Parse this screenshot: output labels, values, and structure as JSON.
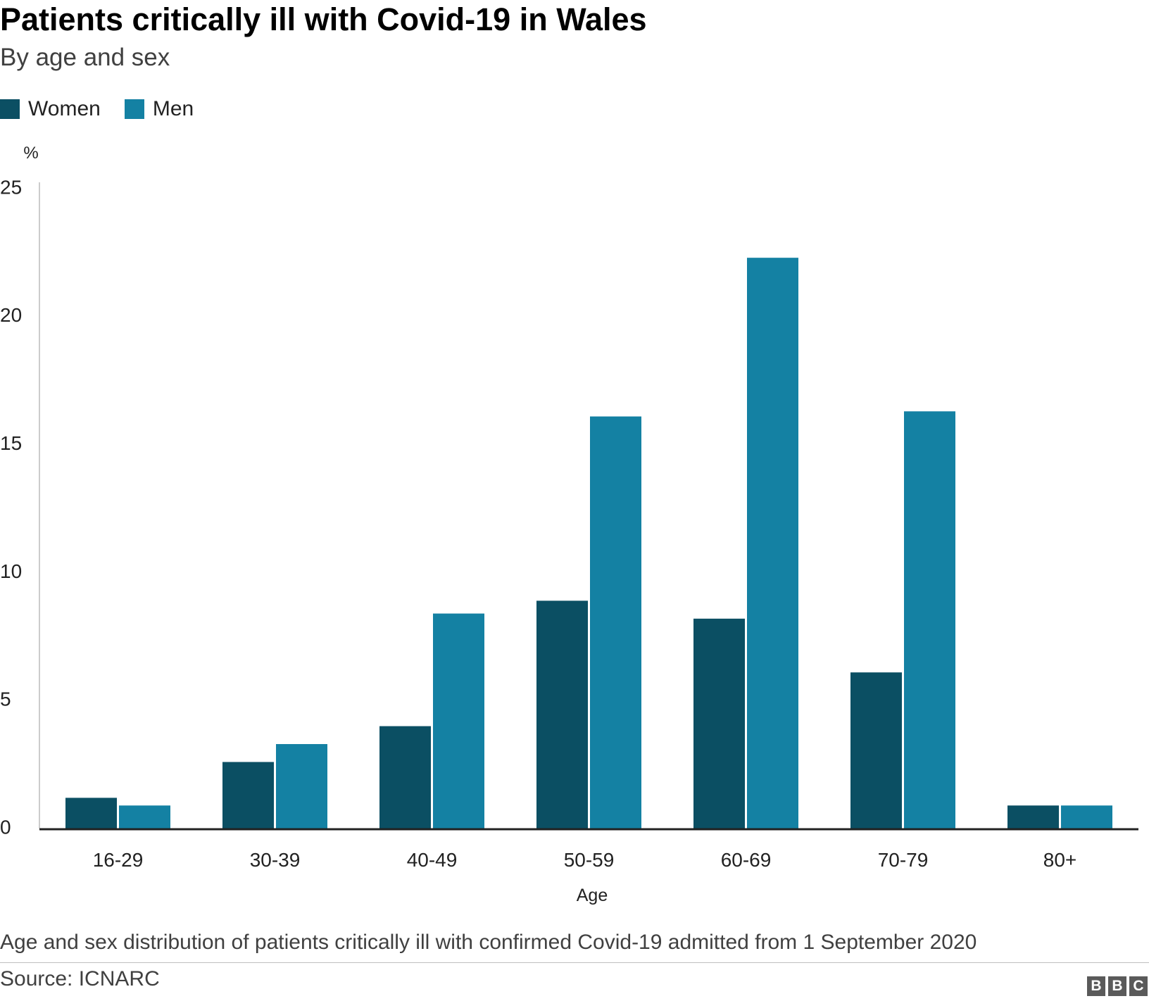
{
  "header": {
    "title": "Patients critically ill with Covid-19 in Wales",
    "subtitle": "By age and sex"
  },
  "legend": [
    {
      "label": "Women",
      "color": "#0b4f63"
    },
    {
      "label": "Men",
      "color": "#1481a3"
    }
  ],
  "chart_data": {
    "type": "bar",
    "title": "Patients critically ill with Covid-19 in Wales",
    "subtitle": "By age and sex",
    "xlabel": "Age",
    "ylabel": "%",
    "categories": [
      "16-29",
      "30-39",
      "40-49",
      "50-59",
      "60-69",
      "70-79",
      "80+"
    ],
    "series": [
      {
        "name": "Women",
        "color": "#0b4f63",
        "values": [
          1.2,
          2.6,
          4.0,
          8.9,
          8.2,
          6.1,
          0.9
        ]
      },
      {
        "name": "Men",
        "color": "#1481a3",
        "values": [
          0.9,
          3.3,
          8.4,
          16.1,
          22.3,
          16.3,
          0.9
        ]
      }
    ],
    "ylim": [
      0,
      25
    ],
    "yticks": [
      0,
      5,
      10,
      15,
      20,
      25
    ],
    "grid": false,
    "legend_position": "top-left"
  },
  "footer": {
    "note": "Age and sex distribution of patients critically ill with confirmed Covid-19 admitted from 1 September 2020",
    "source": "Source: ICNARC",
    "logo": [
      "B",
      "B",
      "C"
    ]
  }
}
